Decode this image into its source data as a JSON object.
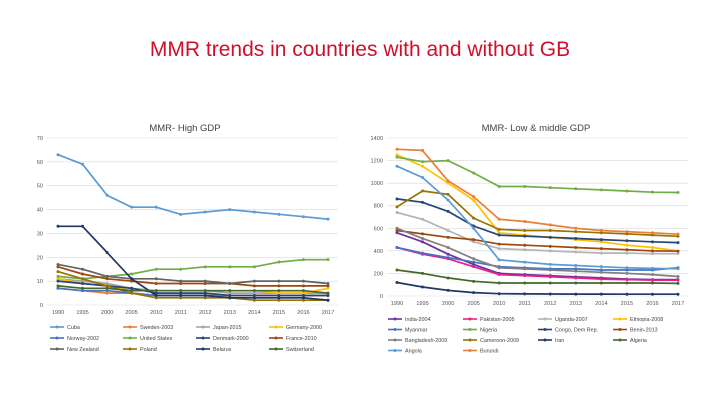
{
  "slide": {
    "title": "MMR trends in countries with and without GB"
  },
  "chart_data": [
    {
      "type": "line",
      "title": "MMR- High GDP",
      "x": [
        "1990",
        "1995",
        "2000",
        "2005",
        "2010",
        "2011",
        "2012",
        "2013",
        "2014",
        "2015",
        "2016",
        "2017"
      ],
      "ylim": [
        0,
        70
      ],
      "yticks": [
        0,
        10,
        20,
        30,
        40,
        50,
        60,
        70
      ],
      "grid": true,
      "legend": "bottom",
      "series": [
        {
          "name": "Cuba",
          "color": "#5b9bd5",
          "values": [
            63,
            59,
            46,
            41,
            41,
            38,
            39,
            40,
            39,
            38,
            37,
            36
          ]
        },
        {
          "name": "Sweden-2003",
          "color": "#ed7d31",
          "values": [
            7,
            6,
            5,
            5,
            4,
            4,
            4,
            4,
            4,
            4,
            4,
            4
          ]
        },
        {
          "name": "Japan-2015",
          "color": "#a5a5a5",
          "values": [
            11,
            10,
            9,
            7,
            6,
            6,
            6,
            5,
            5,
            5,
            5,
            5
          ]
        },
        {
          "name": "Germany-2000",
          "color": "#ffc000",
          "values": [
            11,
            9,
            8,
            6,
            6,
            6,
            6,
            6,
            6,
            5,
            5,
            7
          ]
        },
        {
          "name": "Norway-2002",
          "color": "#4472c4",
          "values": [
            7,
            6,
            6,
            5,
            4,
            4,
            4,
            3,
            3,
            3,
            3,
            2
          ]
        },
        {
          "name": "United States",
          "color": "#70ad47",
          "values": [
            12,
            11,
            12,
            13,
            15,
            15,
            16,
            16,
            16,
            18,
            19,
            19
          ]
        },
        {
          "name": "Denmark-2000",
          "color": "#264478",
          "values": [
            10,
            9,
            8,
            7,
            5,
            5,
            5,
            4,
            4,
            4,
            4,
            4
          ]
        },
        {
          "name": "France-2010",
          "color": "#9e480e",
          "values": [
            16,
            13,
            11,
            10,
            9,
            9,
            9,
            9,
            8,
            8,
            8,
            8
          ]
        },
        {
          "name": "New Zealand",
          "color": "#636363",
          "values": [
            17,
            15,
            12,
            11,
            11,
            10,
            10,
            9,
            10,
            10,
            10,
            9
          ]
        },
        {
          "name": "Poland",
          "color": "#997300",
          "values": [
            14,
            11,
            8,
            5,
            3,
            3,
            3,
            3,
            2,
            2,
            2,
            2
          ]
        },
        {
          "name": "Belarus",
          "color": "#203864",
          "values": [
            33,
            33,
            22,
            11,
            4,
            4,
            4,
            3,
            3,
            3,
            3,
            2
          ]
        },
        {
          "name": "Switzerland",
          "color": "#43682b",
          "values": [
            8,
            7,
            7,
            6,
            6,
            6,
            6,
            6,
            6,
            6,
            6,
            5
          ]
        }
      ]
    },
    {
      "type": "line",
      "title": "MMR- Low & middle GDP",
      "x": [
        "1990",
        "1995",
        "2000",
        "2005",
        "2010",
        "2011",
        "2012",
        "2013",
        "2014",
        "2015",
        "2016",
        "2017"
      ],
      "ylim": [
        0,
        1400
      ],
      "yticks": [
        0,
        200,
        400,
        600,
        800,
        1000,
        1200,
        1400
      ],
      "grid": true,
      "legend": "bottom",
      "series": [
        {
          "name": "India-2004",
          "color": "#7030a0",
          "values": [
            560,
            480,
            370,
            280,
            200,
            190,
            180,
            170,
            160,
            150,
            145,
            145
          ]
        },
        {
          "name": "Pakistan-2005",
          "color": "#e91e8c",
          "values": [
            430,
            370,
            330,
            260,
            190,
            180,
            170,
            160,
            150,
            145,
            140,
            140
          ]
        },
        {
          "name": "Uganda-2007",
          "color": "#b4b4b4",
          "values": [
            740,
            680,
            580,
            480,
            420,
            410,
            400,
            390,
            380,
            380,
            375,
            375
          ]
        },
        {
          "name": "Ethiopia-2008",
          "color": "#ffc000",
          "values": [
            1250,
            1150,
            1000,
            850,
            560,
            540,
            520,
            500,
            480,
            450,
            430,
            400
          ]
        },
        {
          "name": "Myanmar",
          "color": "#4472c4",
          "values": [
            430,
            380,
            340,
            300,
            260,
            250,
            240,
            240,
            230,
            230,
            230,
            250
          ]
        },
        {
          "name": "Nigeria",
          "color": "#70ad47",
          "values": [
            1230,
            1190,
            1200,
            1090,
            970,
            970,
            960,
            950,
            940,
            930,
            920,
            917
          ]
        },
        {
          "name": "Congo, Dem Rep.",
          "color": "#264478",
          "values": [
            860,
            830,
            750,
            620,
            540,
            530,
            520,
            510,
            500,
            490,
            480,
            473
          ]
        },
        {
          "name": "Benin-2013",
          "color": "#9e480e",
          "values": [
            580,
            550,
            520,
            500,
            460,
            450,
            440,
            430,
            420,
            410,
            400,
            397
          ]
        },
        {
          "name": "Bangladesh-2009",
          "color": "#7f7f7f",
          "values": [
            600,
            510,
            430,
            330,
            250,
            240,
            230,
            220,
            210,
            200,
            190,
            173
          ]
        },
        {
          "name": "Cameroon-2009",
          "color": "#997300",
          "values": [
            790,
            930,
            900,
            690,
            590,
            580,
            580,
            570,
            560,
            550,
            540,
            529
          ]
        },
        {
          "name": "Iran",
          "color": "#203864",
          "values": [
            120,
            80,
            50,
            30,
            20,
            19,
            18,
            17,
            17,
            16,
            16,
            16
          ]
        },
        {
          "name": "Algeria",
          "color": "#43682b",
          "values": [
            230,
            200,
            160,
            130,
            115,
            115,
            115,
            115,
            115,
            115,
            115,
            112
          ]
        },
        {
          "name": "Angola",
          "color": "#5b9bd5",
          "values": [
            1150,
            1050,
            850,
            600,
            320,
            300,
            280,
            270,
            260,
            250,
            245,
            241
          ]
        },
        {
          "name": "Burundi",
          "color": "#ed7d31",
          "values": [
            1300,
            1290,
            1020,
            880,
            680,
            660,
            630,
            600,
            580,
            570,
            560,
            548
          ]
        }
      ]
    }
  ]
}
